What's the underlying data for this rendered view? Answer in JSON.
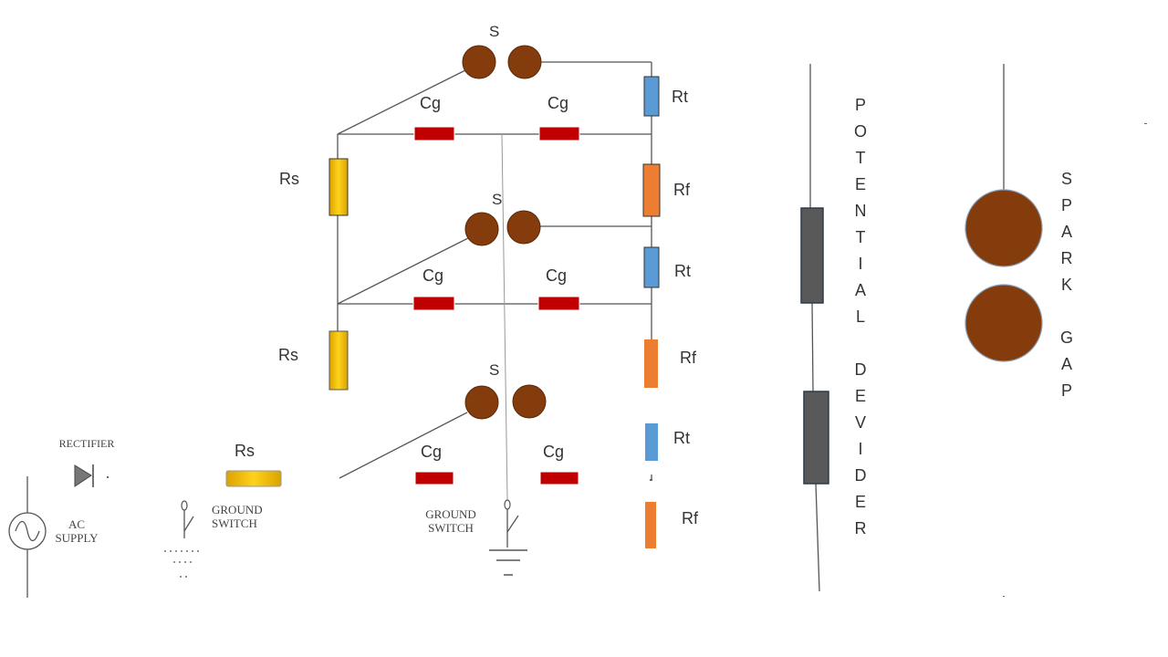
{
  "labels": {
    "s_top": "S",
    "s_mid": "S",
    "s_bot": "S",
    "cg": "Cg",
    "rt": "Rt",
    "rf": "Rf",
    "rs": "Rs"
  },
  "legend": {
    "rectifier": "RECTIFIER",
    "rs": "Rs",
    "ground_switch_left": "GROUND SWITCH",
    "ground_switch_center": "GROUND SWITCH",
    "ac_supply": "AC SUPPLY"
  },
  "vertical_titles": {
    "potential_divider": [
      "P",
      "O",
      "T",
      "E",
      "N",
      "T",
      "I",
      "A",
      "L",
      "",
      "D",
      "E",
      "V",
      "I",
      "D",
      "E",
      "R"
    ],
    "spark_gap": [
      "S",
      "P",
      "A",
      "R",
      "K",
      "",
      "G",
      "A",
      "P"
    ]
  },
  "colors": {
    "sphere": "#843C0C",
    "cg_capacitor": "#C00000",
    "rt_resistor": "#5B9BD5",
    "rf_resistor": "#ED7D31",
    "rs_resistor": "#F5C400",
    "divider": "#595959",
    "wire": "#555555"
  }
}
